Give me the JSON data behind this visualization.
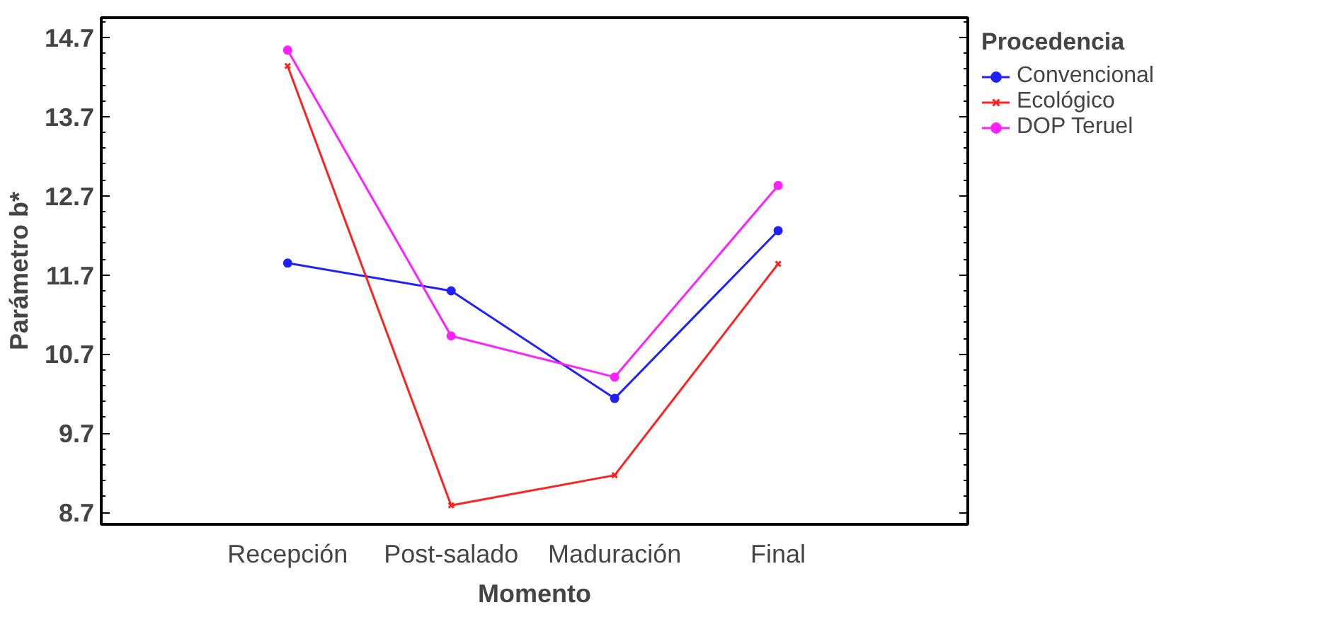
{
  "chart_data": {
    "type": "line",
    "xlabel": "Momento",
    "ylabel": "Parámetro b*",
    "legend_title": "Procedencia",
    "categories": [
      "Recepción",
      "Post-salado",
      "Maduración",
      "Final"
    ],
    "series": [
      {
        "name": "Convencional",
        "color": "#2020ff",
        "marker": "circle",
        "values": [
          11.85,
          11.5,
          10.14,
          12.26
        ]
      },
      {
        "name": "Ecológico",
        "color": "#ff2020",
        "marker": "cross",
        "values": [
          14.34,
          8.79,
          9.17,
          11.84
        ]
      },
      {
        "name": "DOP Teruel",
        "color": "#ff20ff",
        "marker": "circle",
        "values": [
          14.54,
          10.93,
          10.41,
          12.83
        ]
      }
    ],
    "ylim": [
      8.55,
      14.95
    ],
    "yticks": [
      8.7,
      9.7,
      10.7,
      11.7,
      12.7,
      13.7,
      14.7
    ],
    "grid": false,
    "legend": "top right"
  }
}
